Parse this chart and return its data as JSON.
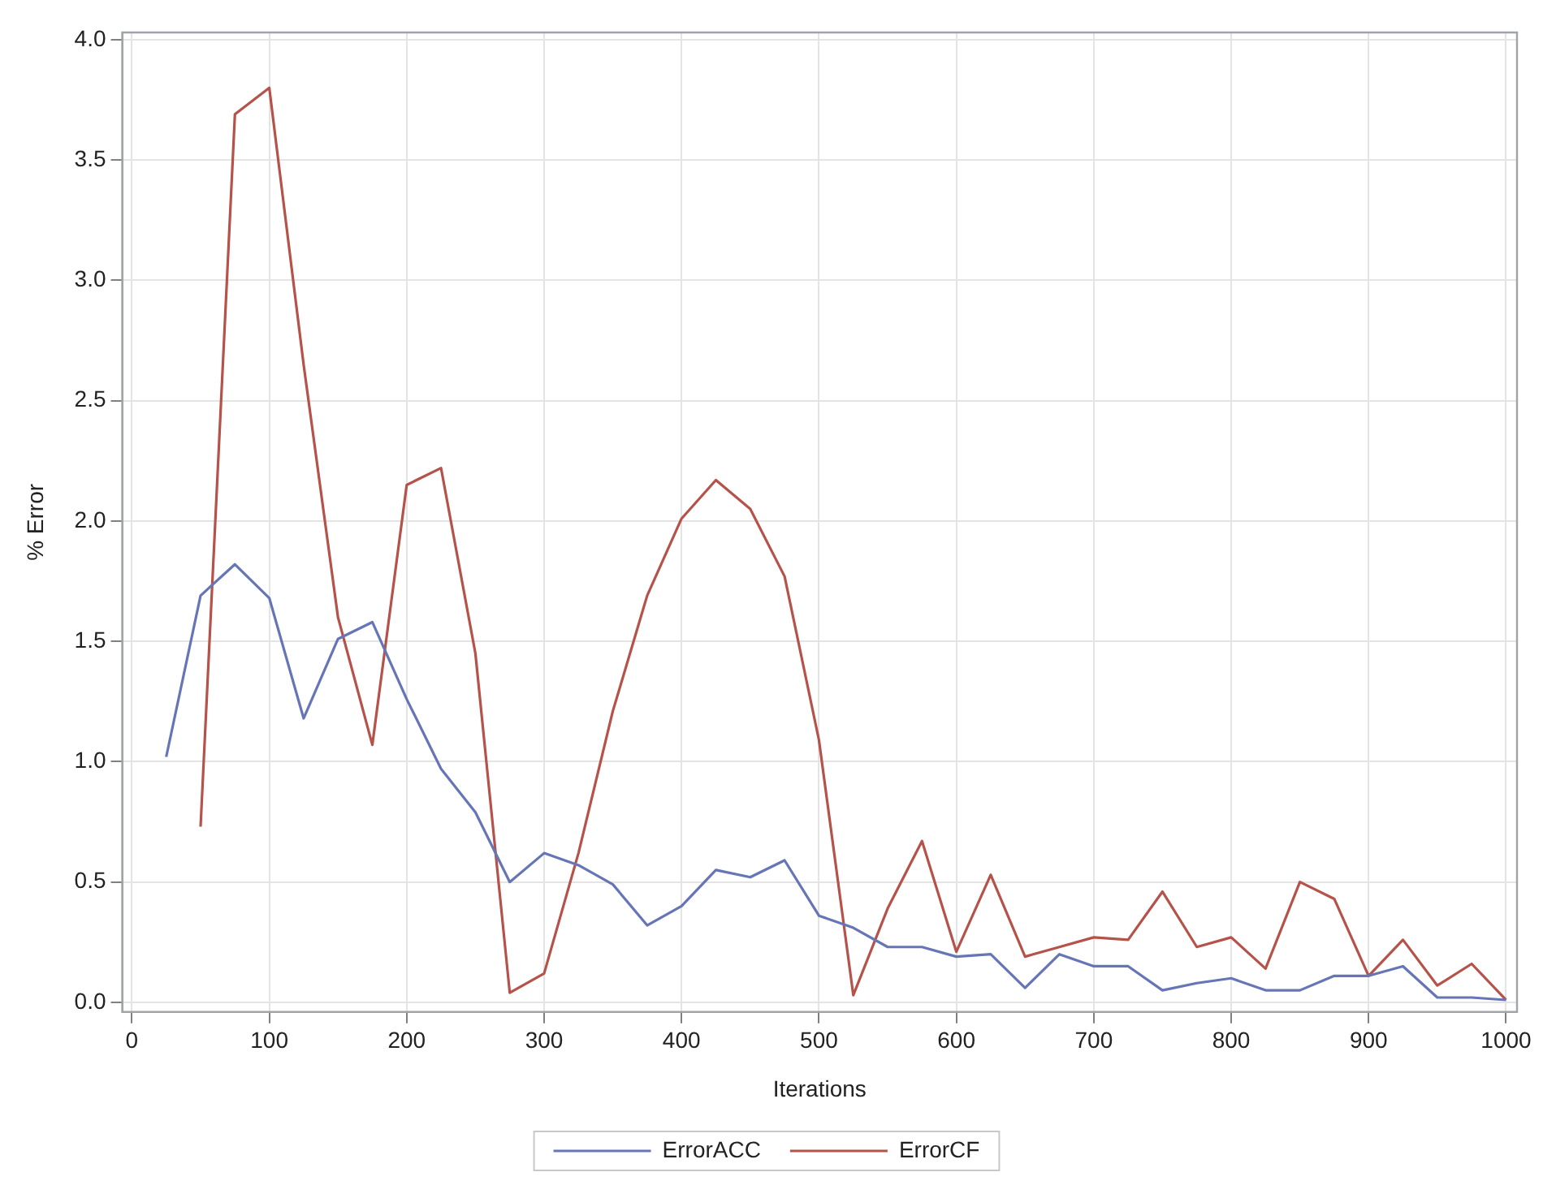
{
  "chart_data": {
    "type": "line",
    "xlabel": "Iterations",
    "ylabel": "% Error",
    "x": [
      25,
      50,
      75,
      100,
      125,
      150,
      175,
      200,
      225,
      250,
      275,
      300,
      325,
      350,
      375,
      400,
      425,
      450,
      475,
      500,
      525,
      550,
      575,
      600,
      625,
      650,
      675,
      700,
      725,
      750,
      775,
      800,
      825,
      850,
      875,
      900,
      925,
      950,
      975,
      1000
    ],
    "series": [
      {
        "name": "ErrorACC",
        "color": "#6675b5",
        "values": [
          1.02,
          1.69,
          1.82,
          1.68,
          1.18,
          1.51,
          1.58,
          1.26,
          0.97,
          0.79,
          0.5,
          0.62,
          0.57,
          0.49,
          0.32,
          0.4,
          0.55,
          0.52,
          0.59,
          0.36,
          0.31,
          0.23,
          0.23,
          0.19,
          0.2,
          0.06,
          0.2,
          0.15,
          0.15,
          0.05,
          0.08,
          0.1,
          0.05,
          0.05,
          0.11,
          0.11,
          0.15,
          0.02,
          0.02,
          0.01
        ]
      },
      {
        "name": "ErrorCF",
        "color": "#b5524a",
        "values": [
          null,
          0.73,
          3.69,
          3.8,
          2.65,
          1.6,
          1.07,
          2.15,
          2.22,
          1.45,
          0.04,
          0.12,
          0.62,
          1.21,
          1.69,
          2.01,
          2.17,
          2.05,
          1.77,
          1.09,
          0.03,
          0.39,
          0.67,
          0.21,
          0.53,
          0.19,
          0.23,
          0.27,
          0.26,
          0.46,
          0.23,
          0.27,
          0.14,
          0.5,
          0.43,
          0.11,
          0.26,
          0.07,
          0.16,
          0.01
        ]
      }
    ],
    "xlim": [
      -7,
      1008
    ],
    "xticks": [
      0,
      100,
      200,
      300,
      400,
      500,
      600,
      700,
      800,
      900,
      1000
    ],
    "ylim": [
      -0.04,
      4.03
    ],
    "yticks": [
      {
        "value": 0,
        "label": "0.0"
      },
      {
        "value": 0.5,
        "label": "0.5"
      },
      {
        "value": 1,
        "label": "1.0"
      },
      {
        "value": 1.5,
        "label": "1.5"
      },
      {
        "value": 2,
        "label": "2.0"
      },
      {
        "value": 2.5,
        "label": "2.5"
      },
      {
        "value": 3,
        "label": "3.0"
      },
      {
        "value": 3.5,
        "label": "3.5"
      },
      {
        "value": 4,
        "label": "4.0"
      }
    ],
    "grid": true,
    "legend": "bottom",
    "marker": "none",
    "line_style": "solid"
  }
}
